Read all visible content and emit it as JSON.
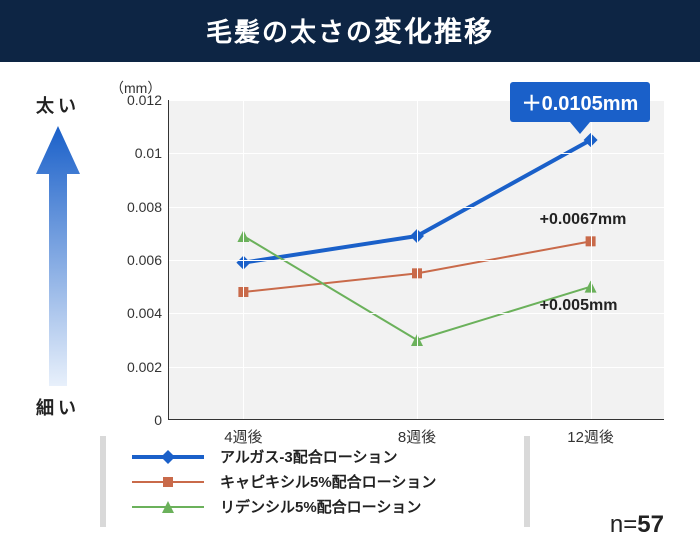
{
  "title_pre": "毛髪の太さの",
  "title_emph": "変化推移",
  "axis_top_label": "太い",
  "axis_bottom_label": "細い",
  "unit_label": "（mm）",
  "n_label": "n=",
  "n_value": "57",
  "chart": {
    "type": "line",
    "background_color": "#f2f2f2",
    "grid_color": "#ffffff",
    "axis_color": "#333333",
    "ylim": [
      0,
      0.012
    ],
    "ytick_step": 0.002,
    "yticks": [
      "0",
      "0.002",
      "0.004",
      "0.006",
      "0.008",
      "0.01",
      "0.012"
    ],
    "x_categories": [
      "4週後",
      "8週後",
      "12週後"
    ],
    "x_positions": [
      0.15,
      0.5,
      0.85
    ],
    "series": [
      {
        "key": "algas",
        "label": "アルガス-3配合ローション",
        "color": "#1a60c9",
        "line_width": 4,
        "marker": "diamond",
        "marker_size": 14,
        "values": [
          0.0059,
          0.0069,
          0.0105
        ]
      },
      {
        "key": "capixyl",
        "label": "キャピキシル5%配合ローション",
        "color": "#c96a4a",
        "line_width": 2,
        "marker": "square",
        "marker_size": 10,
        "values": [
          0.0048,
          0.0055,
          0.0067
        ]
      },
      {
        "key": "redensyl",
        "label": "リデンシル5%配合ローション",
        "color": "#6bb15b",
        "line_width": 2,
        "marker": "triangle",
        "marker_size": 12,
        "values": [
          0.0069,
          0.003,
          0.005
        ]
      }
    ],
    "callout": {
      "text": "＋0.0105mm",
      "series": "algas",
      "point_index": 2
    },
    "annotations": [
      {
        "text": "+0.0067mm",
        "series": "capixyl",
        "point_index": 2,
        "dy": -22
      },
      {
        "text": "+0.005mm",
        "series": "redensyl",
        "point_index": 2,
        "dy": 18
      }
    ]
  },
  "arrow_gradient": {
    "top": "#1a60c9",
    "bottom": "#e8f0fb"
  },
  "title_bg": "#0d2544",
  "label_fontsize": 15,
  "tick_fontsize": 14
}
